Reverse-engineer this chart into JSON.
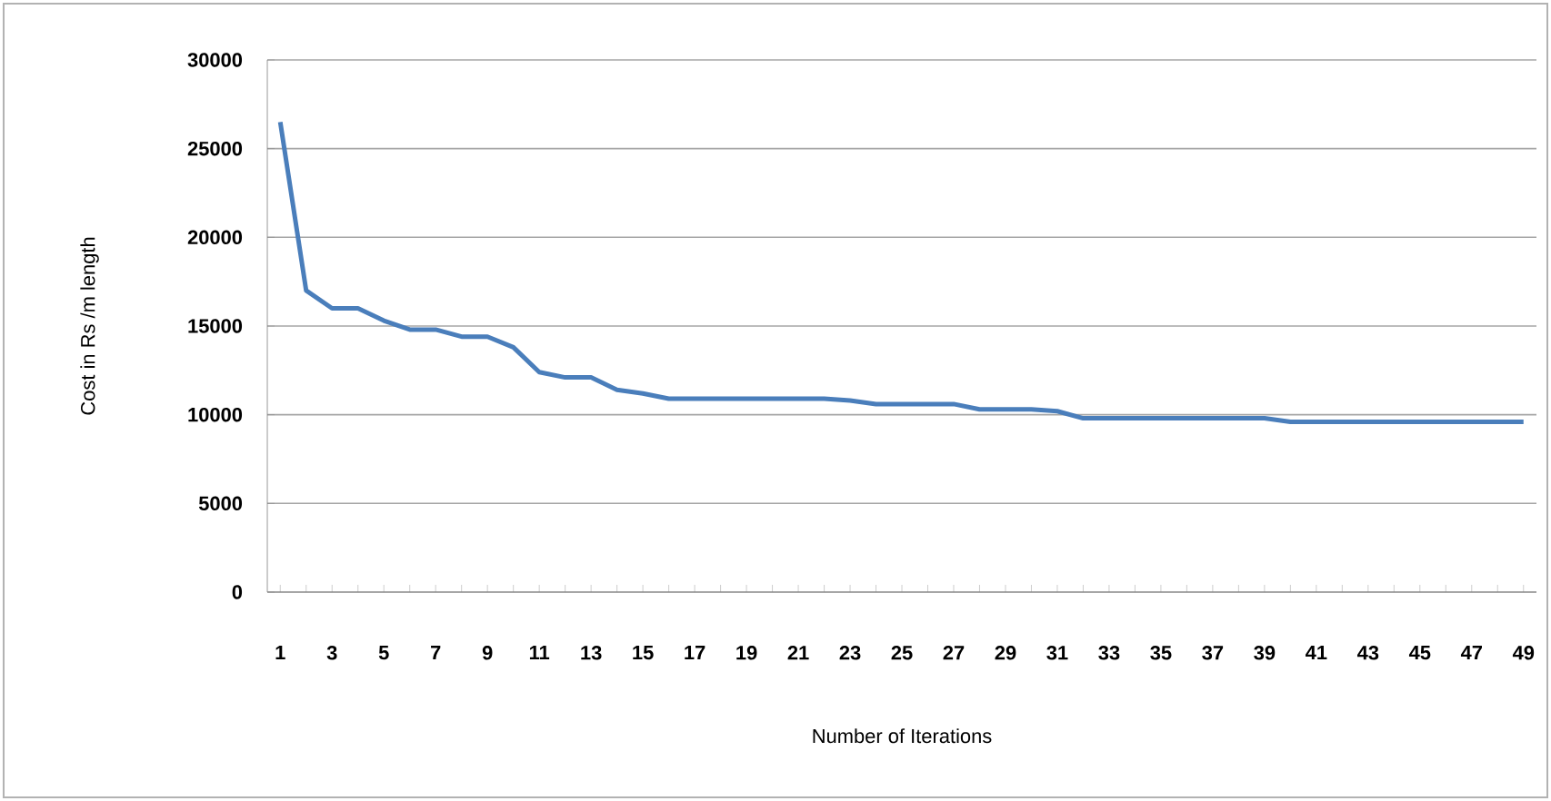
{
  "chart_data": {
    "type": "line",
    "xlabel": "Number of Iterations",
    "ylabel": "Cost in Rs /m length",
    "categories": [
      "1",
      null,
      "3",
      null,
      "5",
      null,
      "7",
      null,
      "9",
      null,
      "11",
      null,
      "13",
      null,
      "15",
      null,
      "17",
      null,
      "19",
      null,
      "21",
      null,
      "23",
      null,
      "25",
      null,
      "27",
      null,
      "29",
      null,
      "31",
      null,
      "33",
      null,
      "35",
      null,
      "37",
      null,
      "39",
      null,
      "41",
      null,
      "43",
      null,
      "45",
      null,
      "47",
      null,
      "49"
    ],
    "series": [
      {
        "color": "#4a7ebb",
        "values": [
          26500,
          17000,
          16000,
          16000,
          15300,
          14800,
          14800,
          14400,
          14400,
          13800,
          12400,
          12100,
          12100,
          11400,
          11200,
          10900,
          10900,
          10900,
          10900,
          10900,
          10900,
          10900,
          10800,
          10600,
          10600,
          10600,
          10600,
          10300,
          10300,
          10300,
          10200,
          9800,
          9800,
          9800,
          9800,
          9800,
          9800,
          9800,
          9800,
          9600,
          9600,
          9600,
          9600,
          9600,
          9600,
          9600,
          9600,
          9600,
          9600
        ]
      }
    ],
    "ylim": [
      0,
      30000
    ],
    "yticks": [
      0,
      5000,
      10000,
      15000,
      20000,
      25000,
      30000
    ],
    "grid": "y",
    "marker": "none",
    "line_style": "solid"
  }
}
